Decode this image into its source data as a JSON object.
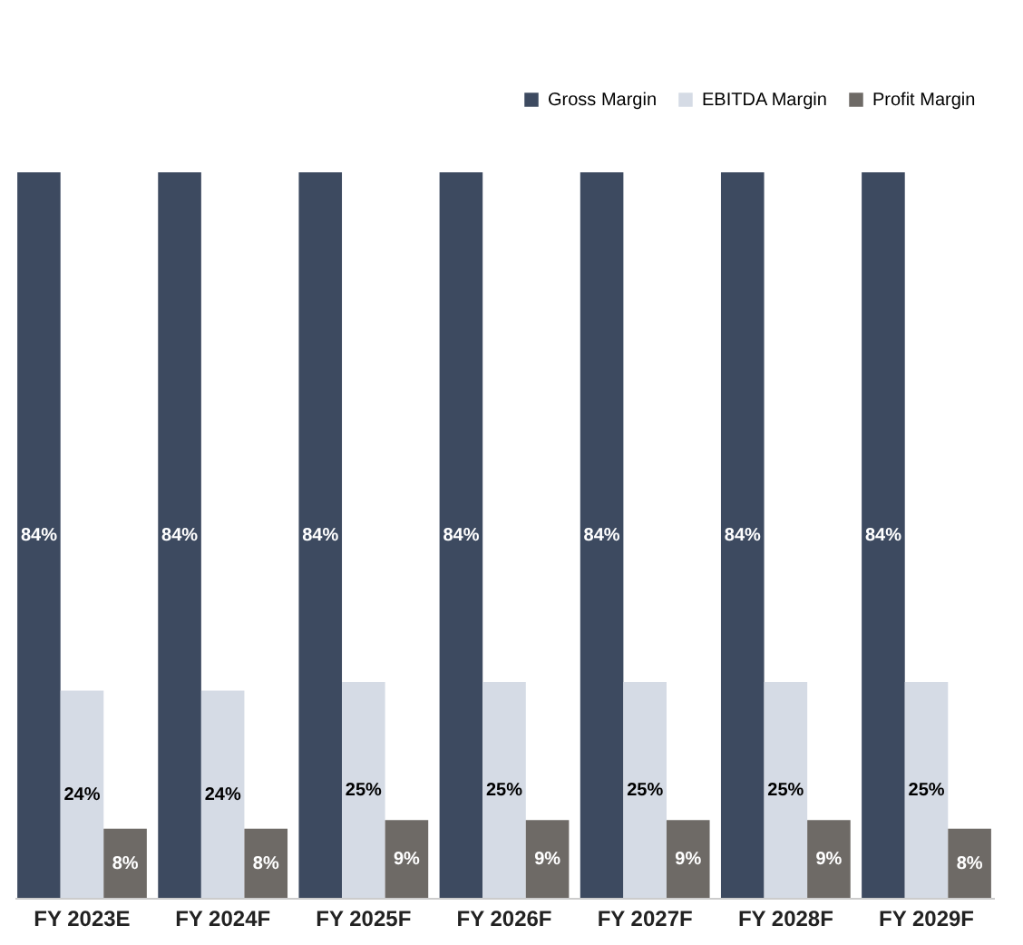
{
  "chart_data": {
    "type": "bar",
    "categories": [
      "FY 2023E",
      "FY 2024F",
      "FY 2025F",
      "FY 2026F",
      "FY 2027F",
      "FY 2028F",
      "FY 2029F"
    ],
    "series": [
      {
        "name": "Gross Margin",
        "color": "#3d4a60",
        "values": [
          84,
          84,
          84,
          84,
          84,
          84,
          84
        ],
        "value_labels": [
          "84%",
          "84%",
          "84%",
          "84%",
          "84%",
          "84%",
          "84%"
        ]
      },
      {
        "name": "EBITDA Margin",
        "color": "#d5dbe5",
        "values": [
          24,
          24,
          25,
          25,
          25,
          25,
          25
        ],
        "value_labels": [
          "24%",
          "24%",
          "25%",
          "25%",
          "25%",
          "25%",
          "25%"
        ]
      },
      {
        "name": "Profit Margin",
        "color": "#6e6a66",
        "values": [
          8,
          8,
          9,
          9,
          9,
          9,
          8
        ],
        "value_labels": [
          "8%",
          "8%",
          "9%",
          "9%",
          "9%",
          "9%",
          "8%"
        ]
      }
    ],
    "legend": "top right",
    "grid": false
  }
}
